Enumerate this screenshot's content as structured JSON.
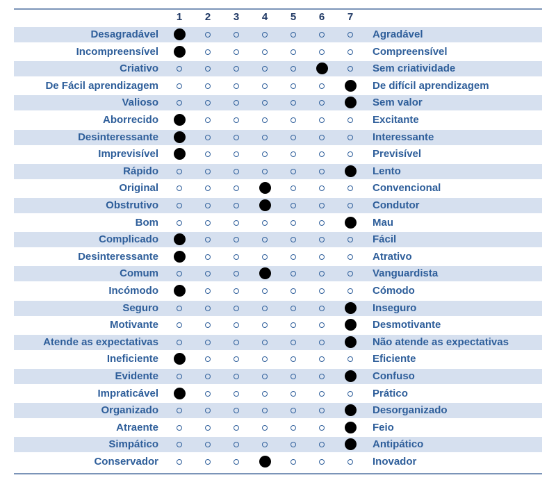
{
  "scale": {
    "points": [
      "1",
      "2",
      "3",
      "4",
      "5",
      "6",
      "7"
    ]
  },
  "items": [
    {
      "left": "Desagradável",
      "right": "Agradável",
      "selected": 1
    },
    {
      "left": "Incompreensível",
      "right": "Compreensível",
      "selected": 1
    },
    {
      "left": "Criativo",
      "right": "Sem criatividade",
      "selected": 6
    },
    {
      "left": "De Fácil aprendizagem",
      "right": "De difícil aprendizagem",
      "selected": 7
    },
    {
      "left": "Valioso",
      "right": "Sem valor",
      "selected": 7
    },
    {
      "left": "Aborrecido",
      "right": "Excitante",
      "selected": 1
    },
    {
      "left": "Desinteressante",
      "right": "Interessante",
      "selected": 1
    },
    {
      "left": "Imprevisível",
      "right": "Previsível",
      "selected": 1
    },
    {
      "left": "Rápido",
      "right": "Lento",
      "selected": 7
    },
    {
      "left": "Original",
      "right": "Convencional",
      "selected": 4
    },
    {
      "left": "Obstrutivo",
      "right": "Condutor",
      "selected": 4
    },
    {
      "left": "Bom",
      "right": "Mau",
      "selected": 7
    },
    {
      "left": "Complicado",
      "right": "Fácil",
      "selected": 1
    },
    {
      "left": "Desinteressante",
      "right": "Atrativo",
      "selected": 1
    },
    {
      "left": "Comum",
      "right": "Vanguardista",
      "selected": 4
    },
    {
      "left": "Incómodo",
      "right": "Cómodo",
      "selected": 1
    },
    {
      "left": "Seguro",
      "right": "Inseguro",
      "selected": 7
    },
    {
      "left": "Motivante",
      "right": "Desmotivante",
      "selected": 7
    },
    {
      "left": "Atende as expectativas",
      "right": "Não atende as expectativas",
      "selected": 7
    },
    {
      "left": "Ineficiente",
      "right": "Eficiente",
      "selected": 1
    },
    {
      "left": "Evidente",
      "right": "Confuso",
      "selected": 7
    },
    {
      "left": "Impraticável",
      "right": "Prático",
      "selected": 1
    },
    {
      "left": "Organizado",
      "right": "Desorganizado",
      "selected": 7
    },
    {
      "left": "Atraente",
      "right": "Feio",
      "selected": 7
    },
    {
      "left": "Simpático",
      "right": "Antipático",
      "selected": 7
    },
    {
      "left": "Conservador",
      "right": "Inovador",
      "selected": 4
    }
  ],
  "colors": {
    "label": "#2e5e9a",
    "header": "#1f3864",
    "band": "#d6e0ef",
    "rule": "#7b94b8",
    "selected": "#000000"
  }
}
